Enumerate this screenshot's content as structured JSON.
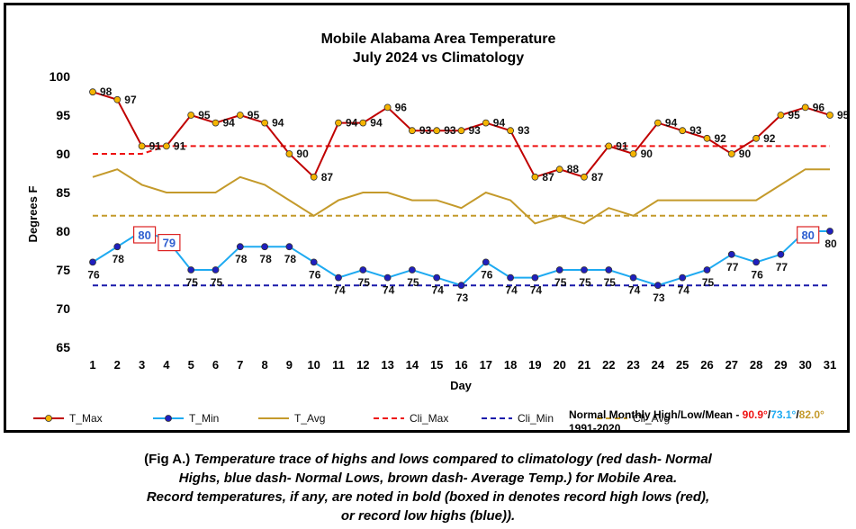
{
  "chart_data": {
    "type": "line",
    "title": "Mobile Alabama Area Temperature",
    "subtitle": "July 2024 vs Climatology",
    "xlabel": "Day",
    "ylabel": "Degrees F",
    "ylim": [
      65,
      100
    ],
    "yticks": [
      65,
      70,
      75,
      80,
      85,
      90,
      95,
      100
    ],
    "x": [
      1,
      2,
      3,
      4,
      5,
      6,
      7,
      8,
      9,
      10,
      11,
      12,
      13,
      14,
      15,
      16,
      17,
      18,
      19,
      20,
      21,
      22,
      23,
      24,
      25,
      26,
      27,
      28,
      29,
      30,
      31
    ],
    "grid": false,
    "legend_position": "bottom",
    "series": [
      {
        "name": "T_Max",
        "color": "#c00000",
        "marker": "#f5b400",
        "values": [
          98,
          97,
          91,
          91,
          95,
          94,
          95,
          94,
          90,
          87,
          94,
          94,
          96,
          93,
          93,
          93,
          94,
          93,
          87,
          88,
          87,
          91,
          90,
          94,
          93,
          92,
          90,
          92,
          95,
          96,
          95
        ]
      },
      {
        "name": "T_Min",
        "color": "#1eaaf1",
        "marker": "#1f1fbf",
        "values": [
          76,
          78,
          80,
          79,
          75,
          75,
          78,
          78,
          78,
          76,
          74,
          75,
          74,
          75,
          74,
          73,
          76,
          74,
          74,
          75,
          75,
          75,
          74,
          73,
          74,
          75,
          77,
          76,
          77,
          80,
          80
        ]
      },
      {
        "name": "T_Avg",
        "color": "#c49a2b",
        "values": [
          87,
          88,
          86,
          85,
          85,
          85,
          87,
          86,
          84,
          82,
          84,
          85,
          85,
          84,
          84,
          83,
          85,
          84,
          81,
          82,
          81,
          83,
          82,
          84,
          84,
          84,
          84,
          84,
          86,
          88,
          88
        ]
      },
      {
        "name": "Cli_Max",
        "color": "#ee1111",
        "dashed": true,
        "values": [
          90,
          90,
          90,
          91,
          91,
          91,
          91,
          91,
          91,
          91,
          91,
          91,
          91,
          91,
          91,
          91,
          91,
          91,
          91,
          91,
          91,
          91,
          91,
          91,
          91,
          91,
          91,
          91,
          91,
          91,
          91
        ]
      },
      {
        "name": "Cli_Min",
        "color": "#1a1aaa",
        "dashed": true,
        "values": [
          73,
          73,
          73,
          73,
          73,
          73,
          73,
          73,
          73,
          73,
          73,
          73,
          73,
          73,
          73,
          73,
          73,
          73,
          73,
          73,
          73,
          73,
          73,
          73,
          73,
          73,
          73,
          73,
          73,
          73,
          73
        ]
      },
      {
        "name": "Cli_Avg",
        "color": "#c49a2b",
        "dashed": true,
        "values": [
          82,
          82,
          82,
          82,
          82,
          82,
          82,
          82,
          82,
          82,
          82,
          82,
          82,
          82,
          82,
          82,
          82,
          82,
          82,
          82,
          82,
          82,
          82,
          82,
          82,
          82,
          82,
          82,
          82,
          82,
          82
        ]
      }
    ],
    "record_high_low_days": [
      3,
      4,
      30
    ],
    "normals": {
      "label": "Normal Monthly High/Low/Mean -",
      "high": "90.9°",
      "low": "73.1°",
      "mean": "82.0°",
      "separator": "/",
      "period": "1991-2020",
      "high_color": "#ee1111",
      "low_color": "#1eaaf1",
      "mean_color": "#c49a2b"
    }
  },
  "caption": {
    "fig": "(Fig A.)",
    "line1": "Temperature trace of highs and lows compared to climatology (red dash- Normal",
    "line2": "Highs, blue dash- Normal Lows, brown dash- Average Temp.) for Mobile Area.",
    "line3": "Record temperatures, if any, are noted in bold (boxed in denotes record high lows (red),",
    "line4": "or record low highs (blue))."
  }
}
